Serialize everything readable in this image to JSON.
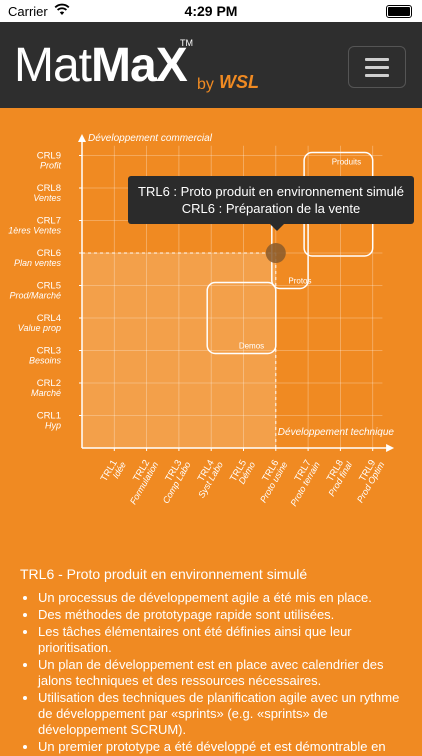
{
  "status_bar": {
    "carrier": "Carrier",
    "time": "4:29 PM"
  },
  "header": {
    "logo_part1": "Mat",
    "logo_part2": "MaX",
    "logo_tm": "TM",
    "logo_by": "by",
    "logo_brand": "WSL",
    "menu_icon": "hamburger-icon"
  },
  "chart_data": {
    "type": "scatter",
    "ylabel": "Développement commercial",
    "xlabel": "Développement technique",
    "x_ticks": [
      {
        "code": "TRL1",
        "name": "Idée"
      },
      {
        "code": "TRL2",
        "name": "Formulation"
      },
      {
        "code": "TRL3",
        "name": "Comp Labo"
      },
      {
        "code": "TRL4",
        "name": "Syst Labo"
      },
      {
        "code": "TRL5",
        "name": "Démo"
      },
      {
        "code": "TRL6",
        "name": "Proto usine"
      },
      {
        "code": "TRL7",
        "name": "Proto terrain"
      },
      {
        "code": "TRL8",
        "name": "Prod final"
      },
      {
        "code": "TRL9",
        "name": "Prod Optim"
      }
    ],
    "y_ticks": [
      {
        "code": "CRL1",
        "name": "Hyp"
      },
      {
        "code": "CRL2",
        "name": "Marché"
      },
      {
        "code": "CRL3",
        "name": "Besoins"
      },
      {
        "code": "CRL4",
        "name": "Value prop"
      },
      {
        "code": "CRL5",
        "name": "Prod/Marché"
      },
      {
        "code": "CRL6",
        "name": "Plan ventes"
      },
      {
        "code": "CRL7",
        "name": "1ères Ventes"
      },
      {
        "code": "CRL8",
        "name": "Ventes"
      },
      {
        "code": "CRL9",
        "name": "Profit"
      }
    ],
    "zones": [
      {
        "label": "Demos",
        "trl_range": [
          4,
          6
        ],
        "crl_range": [
          3,
          5
        ]
      },
      {
        "label": "Protos",
        "trl_range": [
          6,
          7
        ],
        "crl_range": [
          5,
          7
        ]
      },
      {
        "label": "Produits",
        "trl_range": [
          7,
          9
        ],
        "crl_range": [
          6,
          9
        ]
      }
    ],
    "point": {
      "trl": 6,
      "crl": 6
    },
    "colors": {
      "background": "#F08A22",
      "highlight": "#F6B26B",
      "point": "#8A5A2B"
    }
  },
  "tooltip": {
    "line1": "TRL6 : Proto produit en environnement simulé",
    "line2": "CRL6 : Préparation de la vente"
  },
  "description": {
    "title": "TRL6 - Proto produit en environnement simulé",
    "bullets": [
      "Un processus de développement agile a été mis en place.",
      "Des méthodes de prototypage rapide sont utilisées.",
      "Les tâches élémentaires ont été définies ainsi que leur prioritisation.",
      "Un plan de développement est en place avec calendrier des jalons techniques et des ressources nécessaires.",
      "Utilisation des techniques de planification agile avec un rythme de développement par «sprints» (e.g. «sprints» de développement SCRUM).",
      "Un premier prototype a été développé et est démontrable en"
    ]
  }
}
